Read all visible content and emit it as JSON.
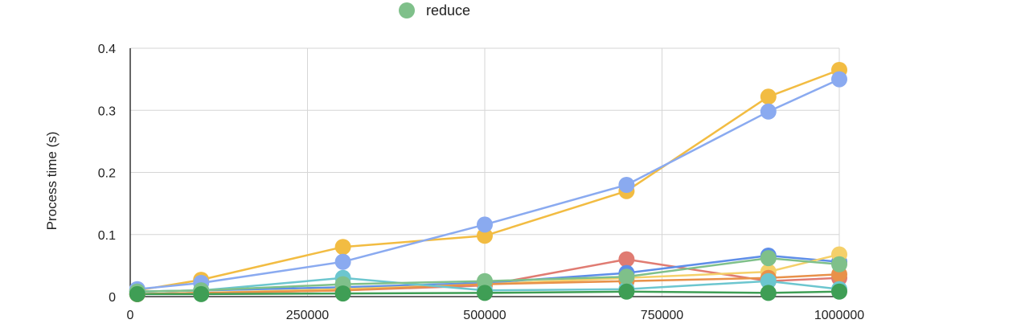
{
  "chart_data": {
    "type": "line",
    "title": "",
    "xlabel": "",
    "ylabel": "Process time (s)",
    "xlim": [
      0,
      1000000
    ],
    "ylim": [
      0,
      0.4
    ],
    "x_ticks": [
      "0",
      "250000",
      "500000",
      "750000",
      "1000000"
    ],
    "y_ticks": [
      "0",
      "0.1",
      "0.2",
      "0.3",
      "0.4"
    ],
    "grid": true,
    "legend": {
      "position": "top",
      "visible_entries": [
        "reduce"
      ]
    },
    "x": [
      10000,
      100000,
      300000,
      500000,
      700000,
      900000,
      1000000
    ],
    "series": [
      {
        "color": "#f2bc42",
        "values": [
          0.01,
          0.027,
          0.08,
          0.098,
          0.17,
          0.322,
          0.365
        ]
      },
      {
        "color": "#8aaaf0",
        "values": [
          0.012,
          0.022,
          0.056,
          0.116,
          0.18,
          0.298,
          0.35
        ]
      },
      {
        "color": "#e07b72",
        "values": [
          0.004,
          0.006,
          0.01,
          0.018,
          0.06,
          0.025,
          0.03
        ]
      },
      {
        "color": "#5e8ee8",
        "values": [
          0.008,
          0.01,
          0.015,
          0.022,
          0.038,
          0.066,
          0.056
        ]
      },
      {
        "color": "#f5d06a",
        "values": [
          0.004,
          0.006,
          0.012,
          0.02,
          0.03,
          0.04,
          0.068
        ]
      },
      {
        "color": "#e8914a",
        "values": [
          0.004,
          0.006,
          0.01,
          0.02,
          0.025,
          0.03,
          0.036
        ]
      },
      {
        "color": "#6cc6cf",
        "values": [
          0.008,
          0.01,
          0.03,
          0.01,
          0.012,
          0.025,
          0.012
        ]
      },
      {
        "name": "reduce",
        "color": "#7fc08a",
        "values": [
          0.008,
          0.01,
          0.02,
          0.025,
          0.032,
          0.062,
          0.052
        ]
      },
      {
        "color": "#3f9e55",
        "values": [
          0.004,
          0.004,
          0.005,
          0.006,
          0.008,
          0.006,
          0.008
        ]
      }
    ]
  }
}
